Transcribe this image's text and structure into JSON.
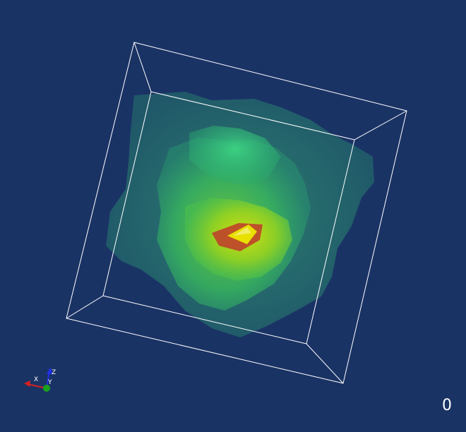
{
  "scene": {
    "background_color": "#1a3365",
    "box_color": "#ffffff",
    "isosurface_colors": {
      "outer": "#2aa06a",
      "middle": "#35c45a",
      "inner": "#8fd21c",
      "core_yellow": "#e8e000",
      "core_red": "#c0392b"
    }
  },
  "axes": {
    "x_label": "X",
    "y_label": "Y",
    "z_label": "Z",
    "x_color": "#d62020",
    "y_color": "#1aa020",
    "z_color": "#2030e0"
  },
  "frame_counter": "0"
}
